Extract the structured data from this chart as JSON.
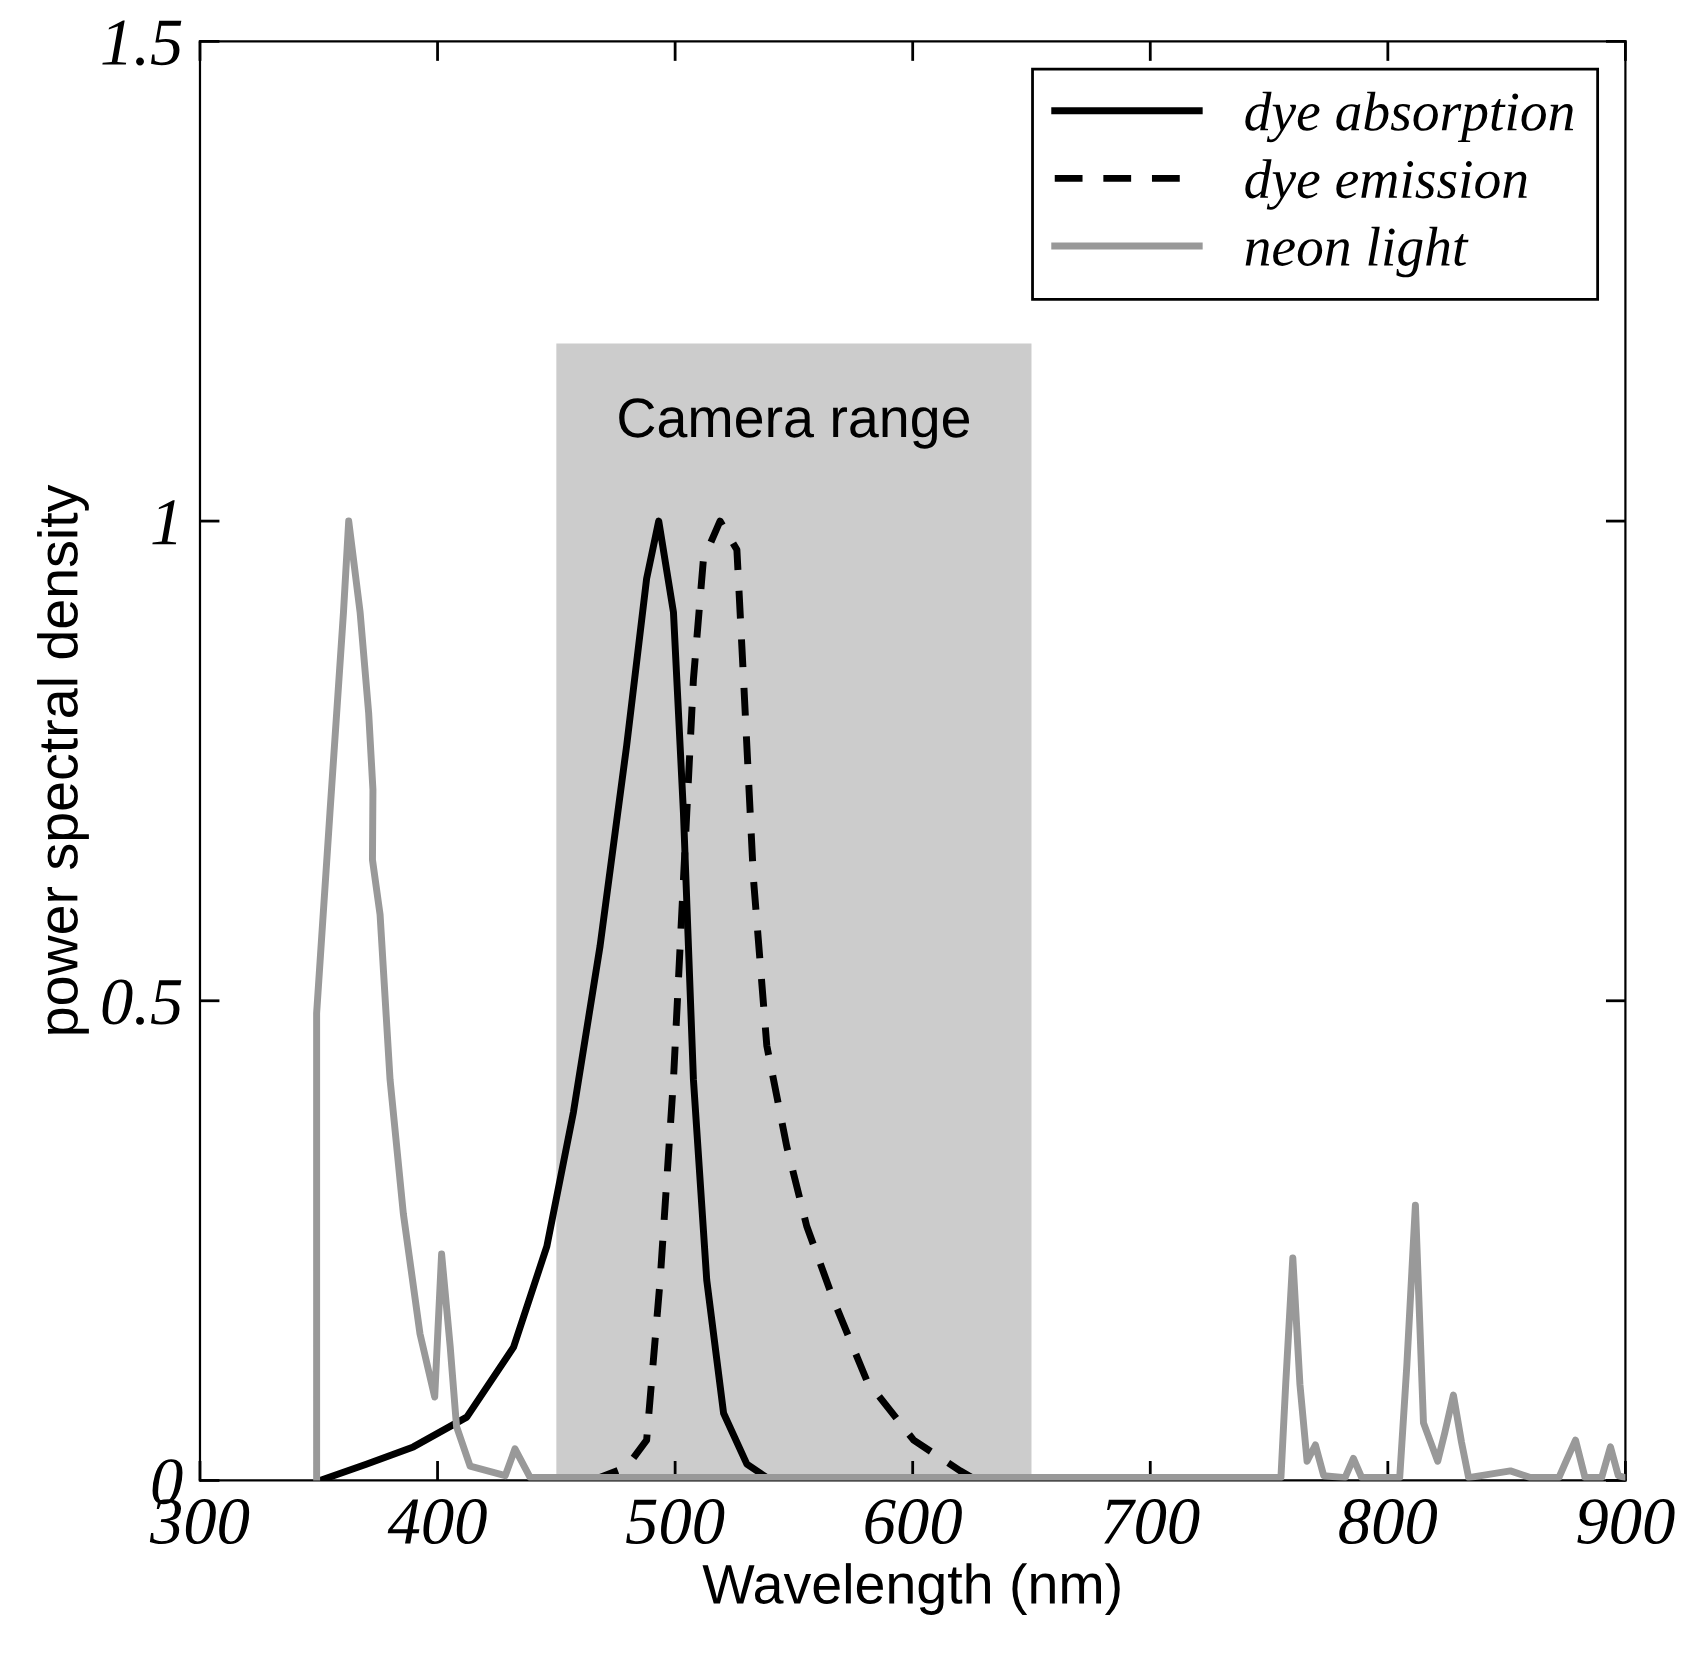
{
  "chart_data": {
    "type": "line",
    "xlabel": "Wavelength (nm)",
    "ylabel": "power spectral density",
    "xlim": [
      300,
      900
    ],
    "ylim": [
      0,
      1.5
    ],
    "xticks": [
      300,
      400,
      500,
      600,
      700,
      800,
      900
    ],
    "yticks": [
      0,
      0.5,
      1,
      1.5
    ],
    "legend": "top right",
    "grid": false,
    "marker": "none",
    "bands": [
      {
        "axis": "x",
        "from": 450,
        "to": 650,
        "label": "Camera range",
        "color": "#cccccc"
      }
    ],
    "series": [
      {
        "name": "dye absorption",
        "color": "#000000",
        "line_style": "solid",
        "x": [
          350.5,
          370,
          389.8,
          412.3,
          432,
          446,
          457.2,
          468.4,
          479.6,
          488,
          493.1,
          499.3,
          503.5,
          507.7,
          513.3,
          520.4,
          530.2,
          538.6,
          560
        ],
        "values": [
          0,
          0.017,
          0.035,
          0.066,
          0.139,
          0.244,
          0.384,
          0.557,
          0.766,
          0.94,
          1.0,
          0.905,
          0.696,
          0.418,
          0.209,
          0.07,
          0.017,
          0.003,
          0
        ]
      },
      {
        "name": "dye emission",
        "color": "#000000",
        "line_style": "dashed",
        "x": [
          465,
          479.6,
          488,
          493.7,
          499.3,
          503.5,
          507.7,
          511.9,
          518.9,
          526,
          528.8,
          533,
          538.6,
          547,
          555.4,
          566.7,
          580.7,
          600.4,
          620,
          627
        ],
        "values": [
          0,
          0.014,
          0.042,
          0.209,
          0.418,
          0.626,
          0.835,
          0.96,
          1.0,
          0.97,
          0.835,
          0.626,
          0.453,
          0.348,
          0.265,
          0.188,
          0.104,
          0.042,
          0.01,
          0
        ]
      },
      {
        "name": "neon light",
        "color": "#999999",
        "line_style": "solid",
        "x": [
          349.1,
          349.1,
          354.7,
          360.4,
          362.6,
          367.4,
          371,
          372.8,
          372.6,
          375.8,
          380,
          385.6,
          392.6,
          398.8,
          401.7,
          405.3,
          408,
          413.7,
          428.5,
          432.6,
          439,
          500,
          600,
          700,
          755,
          757,
          760,
          763,
          766,
          769.5,
          773,
          782,
          785.5,
          789,
          805,
          808,
          811.6,
          815,
          818,
          821,
          824,
          827.6,
          831,
          834,
          851.6,
          860,
          872,
          875,
          879,
          883,
          890,
          893.7,
          897,
          900
        ],
        "values": [
          0,
          0.487,
          0.696,
          0.905,
          1.0,
          0.905,
          0.8,
          0.72,
          0.647,
          0.59,
          0.418,
          0.278,
          0.153,
          0.087,
          0.236,
          0.14,
          0.056,
          0.015,
          0.005,
          0.033,
          0.003,
          0.003,
          0.003,
          0.003,
          0.003,
          0.1,
          0.232,
          0.1,
          0.02,
          0.037,
          0.005,
          0.003,
          0.023,
          0.003,
          0.003,
          0.12,
          0.287,
          0.06,
          0.04,
          0.02,
          0.05,
          0.089,
          0.04,
          0.003,
          0.01,
          0.003,
          0.003,
          0.02,
          0.042,
          0.003,
          0.003,
          0.035,
          0.005,
          0.003
        ]
      }
    ]
  }
}
